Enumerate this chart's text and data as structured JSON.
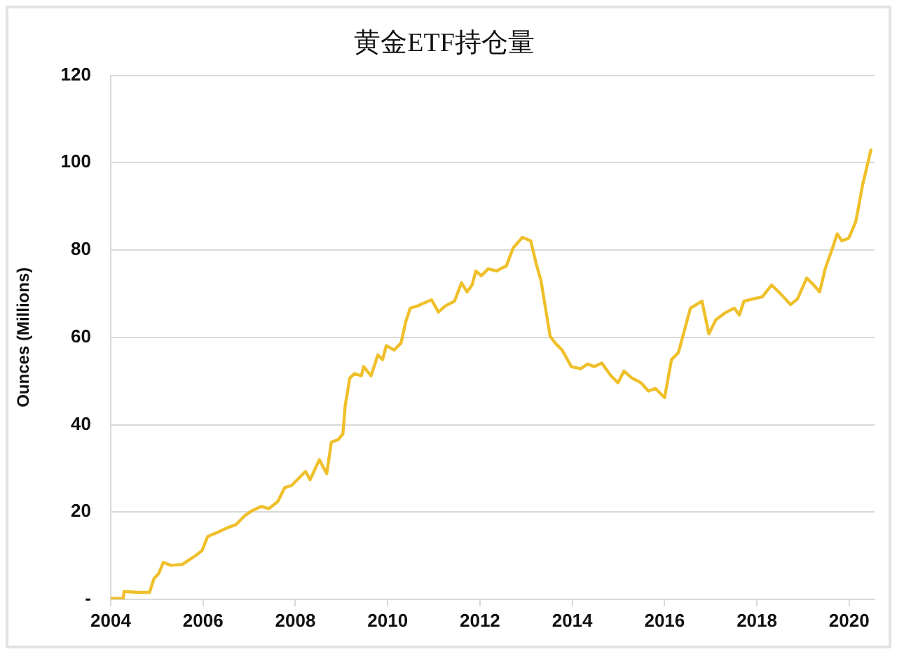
{
  "chart_data": {
    "type": "line",
    "title": "黄金ETF持仓量",
    "ylabel": "Ounces (Millions)",
    "x": [
      2004.0,
      2004.27,
      2004.29,
      2004.6,
      2004.84,
      2004.94,
      2005.04,
      2005.14,
      2005.3,
      2005.55,
      2005.85,
      2005.98,
      2006.1,
      2006.35,
      2006.55,
      2006.71,
      2006.91,
      2007.06,
      2007.26,
      2007.43,
      2007.62,
      2007.77,
      2007.92,
      2008.07,
      2008.22,
      2008.32,
      2008.52,
      2008.68,
      2008.78,
      2008.93,
      2009.03,
      2009.08,
      2009.18,
      2009.28,
      2009.43,
      2009.48,
      2009.64,
      2009.79,
      2009.89,
      2009.97,
      2010.14,
      2010.29,
      2010.39,
      2010.49,
      2010.65,
      2010.75,
      2010.95,
      2011.1,
      2011.25,
      2011.45,
      2011.6,
      2011.72,
      2011.83,
      2011.91,
      2012.03,
      2012.18,
      2012.36,
      2012.5,
      2012.57,
      2012.72,
      2012.92,
      2013.1,
      2013.22,
      2013.32,
      2013.42,
      2013.52,
      2013.63,
      2013.78,
      2013.98,
      2014.18,
      2014.33,
      2014.48,
      2014.64,
      2014.84,
      2014.99,
      2015.12,
      2015.29,
      2015.49,
      2015.65,
      2015.8,
      2016.0,
      2016.15,
      2016.3,
      2016.56,
      2016.81,
      2016.96,
      2017.11,
      2017.31,
      2017.51,
      2017.62,
      2017.72,
      2017.92,
      2018.12,
      2018.32,
      2018.52,
      2018.73,
      2018.88,
      2019.08,
      2019.23,
      2019.36,
      2019.48,
      2019.64,
      2019.74,
      2019.84,
      2019.99,
      2020.14,
      2020.19,
      2020.29,
      2020.47
    ],
    "series": [
      {
        "color": "#efc02b",
        "values": [
          0.2,
          0.2,
          1.8,
          1.6,
          1.6,
          4.8,
          5.9,
          8.5,
          7.8,
          8.0,
          10.1,
          11.2,
          14.4,
          15.5,
          16.5,
          17.1,
          19.2,
          20.3,
          21.3,
          20.8,
          22.4,
          25.6,
          26.1,
          27.7,
          29.3,
          27.4,
          32.0,
          28.8,
          36.0,
          36.6,
          37.9,
          44.3,
          50.7,
          51.7,
          51.2,
          53.3,
          51.2,
          56.0,
          54.9,
          58.1,
          57.1,
          58.7,
          63.5,
          66.7,
          67.2,
          67.7,
          68.6,
          65.8,
          67.2,
          68.3,
          72.5,
          70.4,
          72.0,
          75.2,
          74.1,
          75.7,
          75.2,
          76.0,
          76.3,
          80.5,
          82.9,
          82.1,
          76.8,
          73.1,
          66.7,
          60.3,
          58.7,
          57.1,
          53.3,
          52.8,
          53.9,
          53.3,
          54.1,
          51.2,
          49.6,
          52.3,
          50.7,
          49.6,
          47.7,
          48.3,
          46.2,
          54.9,
          56.5,
          66.7,
          68.3,
          60.8,
          64.0,
          65.6,
          66.7,
          65.1,
          68.3,
          68.8,
          69.3,
          72.0,
          69.9,
          67.5,
          68.8,
          73.6,
          72.0,
          70.4,
          75.7,
          80.5,
          83.7,
          82.1,
          82.7,
          86.4,
          89.1,
          94.9,
          102.9
        ]
      }
    ],
    "xlim": [
      2004,
      2020.55
    ],
    "xticks": [
      2004,
      2006,
      2008,
      2010,
      2012,
      2014,
      2016,
      2018,
      2020
    ],
    "ylim": [
      0,
      120
    ],
    "yticks": [
      {
        "value": 0,
        "label": "-"
      },
      20,
      40,
      60,
      80,
      100,
      120
    ],
    "grid": "y",
    "legend": false,
    "marker": "none",
    "line_style": "solid"
  }
}
